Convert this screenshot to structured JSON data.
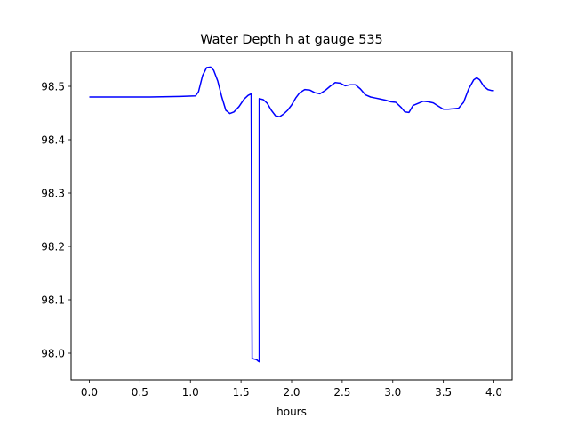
{
  "chart_data": {
    "type": "line",
    "title": "Water Depth h at gauge 535",
    "xlabel": "hours",
    "ylabel": "",
    "xlim": [
      -0.18,
      4.18
    ],
    "ylim": [
      97.95,
      98.565
    ],
    "xticks": [
      0.0,
      0.5,
      1.0,
      1.5,
      2.0,
      2.5,
      3.0,
      3.5,
      4.0
    ],
    "xtick_labels": [
      "0.0",
      "0.5",
      "1.0",
      "1.5",
      "2.0",
      "2.5",
      "3.0",
      "3.5",
      "4.0"
    ],
    "yticks": [
      98.0,
      98.1,
      98.2,
      98.3,
      98.4,
      98.5
    ],
    "ytick_labels": [
      "98.0",
      "98.1",
      "98.2",
      "98.3",
      "98.4",
      "98.5"
    ],
    "grid": false,
    "series": [
      {
        "color": "#0000ff",
        "x": [
          0.0,
          0.3,
          0.6,
          0.9,
          1.05,
          1.08,
          1.12,
          1.16,
          1.2,
          1.23,
          1.27,
          1.31,
          1.35,
          1.39,
          1.43,
          1.48,
          1.53,
          1.57,
          1.6,
          1.61,
          1.65,
          1.66,
          1.67,
          1.68,
          1.68,
          1.72,
          1.76,
          1.8,
          1.84,
          1.88,
          1.92,
          1.96,
          2.0,
          2.04,
          2.08,
          2.13,
          2.18,
          2.23,
          2.28,
          2.33,
          2.38,
          2.43,
          2.48,
          2.53,
          2.58,
          2.63,
          2.68,
          2.73,
          2.78,
          2.83,
          2.88,
          2.93,
          2.98,
          3.03,
          3.08,
          3.12,
          3.16,
          3.2,
          3.25,
          3.3,
          3.35,
          3.4,
          3.45,
          3.5,
          3.55,
          3.6,
          3.65,
          3.7,
          3.75,
          3.8,
          3.83,
          3.86,
          3.9,
          3.94,
          3.98,
          4.0
        ],
        "y": [
          98.48,
          98.48,
          98.48,
          98.481,
          98.482,
          98.49,
          98.52,
          98.535,
          98.536,
          98.53,
          98.51,
          98.48,
          98.455,
          98.449,
          98.452,
          98.462,
          98.476,
          98.483,
          98.486,
          97.99,
          97.988,
          97.987,
          97.985,
          97.984,
          98.477,
          98.475,
          98.468,
          98.455,
          98.445,
          98.443,
          98.448,
          98.455,
          98.465,
          98.478,
          98.488,
          98.494,
          98.493,
          98.488,
          98.486,
          98.492,
          98.5,
          98.507,
          98.506,
          98.501,
          98.503,
          98.503,
          98.495,
          98.484,
          98.48,
          98.478,
          98.476,
          98.474,
          98.471,
          98.47,
          98.461,
          98.452,
          98.451,
          98.464,
          98.468,
          98.472,
          98.471,
          98.469,
          98.463,
          98.457,
          98.457,
          98.458,
          98.459,
          98.47,
          98.495,
          98.512,
          98.516,
          98.512,
          98.5,
          98.494,
          98.492,
          98.492
        ]
      }
    ]
  }
}
